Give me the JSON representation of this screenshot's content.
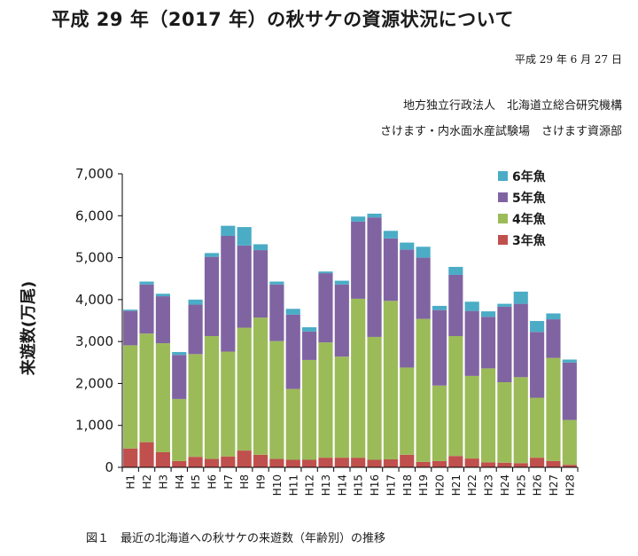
{
  "header": {
    "title": "平成 29 年（2017 年）の秋サケの資源状況について",
    "date": "平成 29 年 6 月 27 日",
    "org_line1": "地方独立行政法人　北海道立総合研究機構",
    "org_line2": "さけます・内水面水産試験場　さけます資源部"
  },
  "caption": "図１　最近の北海道への秋サケの来遊数（年齢別）の推移",
  "chart_data": {
    "type": "bar",
    "stacked": true,
    "title": "",
    "xlabel": "",
    "ylabel": "来遊数(万尾)",
    "ylim": [
      0,
      7000
    ],
    "yticks": [
      0,
      1000,
      2000,
      3000,
      4000,
      5000,
      6000,
      7000
    ],
    "ytick_labels": [
      "0",
      "1,000",
      "2,000",
      "3,000",
      "4,000",
      "5,000",
      "6,000",
      "7,000"
    ],
    "grid": false,
    "legend_position": "top-right",
    "categories": [
      "H1",
      "H2",
      "H3",
      "H4",
      "H5",
      "H6",
      "H7",
      "H8",
      "H9",
      "H10",
      "H11",
      "H12",
      "H13",
      "H14",
      "H15",
      "H16",
      "H17",
      "H18",
      "H19",
      "H20",
      "H21",
      "H22",
      "H23",
      "H24",
      "H25",
      "H26",
      "H27",
      "H28"
    ],
    "series": [
      {
        "name": "3年魚",
        "color": "#c0504d",
        "values": [
          450,
          600,
          360,
          150,
          250,
          200,
          260,
          400,
          300,
          200,
          180,
          180,
          230,
          230,
          230,
          180,
          190,
          300,
          130,
          150,
          270,
          210,
          120,
          110,
          100,
          230,
          150,
          60
        ]
      },
      {
        "name": "4年魚",
        "color": "#9bbb59",
        "values": [
          2460,
          2590,
          2600,
          1480,
          2450,
          2930,
          2500,
          2930,
          3270,
          2810,
          1690,
          2380,
          2750,
          2410,
          3790,
          2930,
          3780,
          2080,
          3410,
          1800,
          2860,
          1970,
          2240,
          1920,
          2050,
          1430,
          2460,
          1070
        ]
      },
      {
        "name": "5年魚",
        "color": "#8064a2",
        "values": [
          820,
          1170,
          1120,
          1050,
          1180,
          1890,
          2760,
          1960,
          1610,
          1350,
          1770,
          680,
          1650,
          1720,
          1840,
          2850,
          1490,
          2810,
          1460,
          1800,
          1460,
          1550,
          1230,
          1800,
          1750,
          1570,
          920,
          1370
        ]
      },
      {
        "name": "6年魚",
        "color": "#4bacc6",
        "values": [
          30,
          70,
          60,
          70,
          120,
          90,
          240,
          440,
          140,
          70,
          140,
          100,
          40,
          90,
          120,
          90,
          180,
          170,
          260,
          100,
          190,
          220,
          130,
          70,
          290,
          260,
          140,
          70
        ]
      }
    ],
    "legend_order": [
      "6年魚",
      "5年魚",
      "4年魚",
      "3年魚"
    ]
  }
}
